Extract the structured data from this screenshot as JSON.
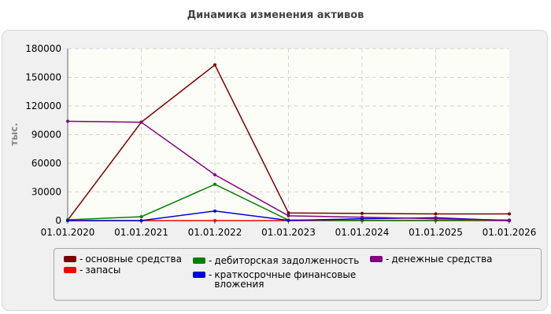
{
  "chart_data": {
    "type": "line",
    "title": "Динамика изменения активов",
    "ylabel": "тыс.",
    "xlabel": "",
    "x": [
      "01.01.2020",
      "01.01.2021",
      "01.01.2022",
      "01.01.2023",
      "01.01.2024",
      "01.01.2025",
      "01.01.2026"
    ],
    "ylim": [
      0,
      180000
    ],
    "yticks": [
      "0",
      "30000",
      "60000",
      "90000",
      "120000",
      "150000",
      "180000"
    ],
    "grid": true,
    "legend_position": "bottom",
    "series": [
      {
        "name": "основные средства",
        "color": "#7a0000",
        "values": [
          500,
          103000,
          163000,
          8000,
          7500,
          7000,
          7000
        ]
      },
      {
        "name": "запасы",
        "color": "#ff0000",
        "values": [
          0,
          0,
          0,
          0,
          0,
          0,
          0
        ]
      },
      {
        "name": "дебиторская задолженность",
        "color": "#008000",
        "values": [
          800,
          4000,
          38000,
          500,
          300,
          300,
          300
        ]
      },
      {
        "name": "краткосрочные финансовые вложения",
        "color": "#0000e0",
        "values": [
          0,
          0,
          10000,
          200,
          2000,
          3000,
          0
        ]
      },
      {
        "name": "денежные средства",
        "color": "#800080",
        "values": [
          104000,
          103000,
          48000,
          5000,
          3500,
          2000,
          500
        ]
      }
    ]
  }
}
